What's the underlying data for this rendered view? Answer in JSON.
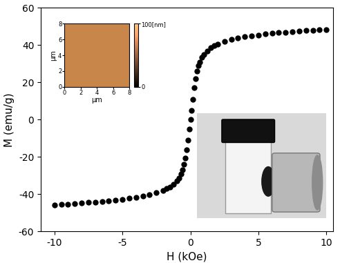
{
  "chart_data": [
    {
      "type": "scatter",
      "color": "#000000",
      "marker": "o",
      "xlabel": "H (kOe)",
      "ylabel": "M (emu/g)",
      "x": [
        -10,
        -9.5,
        -9,
        -8.5,
        -8,
        -7.5,
        -7,
        -6.5,
        -6,
        -5.5,
        -5,
        -4.5,
        -4,
        -3.5,
        -3,
        -2.5,
        -2,
        -1.75,
        -1.5,
        -1.25,
        -1,
        -0.85,
        -0.7,
        -0.6,
        -0.5,
        -0.4,
        -0.3,
        -0.2,
        -0.1,
        0,
        0.1,
        0.2,
        0.3,
        0.4,
        0.5,
        0.6,
        0.7,
        0.85,
        1,
        1.25,
        1.5,
        1.75,
        2,
        2.5,
        3,
        3.5,
        4,
        4.5,
        5,
        5.5,
        6,
        6.5,
        7,
        7.5,
        8,
        8.5,
        9,
        9.5,
        10
      ],
      "values": [
        -45.8,
        -45.5,
        -45.3,
        -45.0,
        -44.8,
        -44.5,
        -44.2,
        -43.9,
        -43.5,
        -43.1,
        -42.7,
        -42.2,
        -41.6,
        -41.0,
        -40.2,
        -39.3,
        -38.0,
        -37.1,
        -36.0,
        -34.7,
        -33.0,
        -31.3,
        -29.0,
        -26.8,
        -24.0,
        -20.5,
        -16.0,
        -11.0,
        -5.0,
        0.0,
        5.0,
        11.0,
        17.0,
        22.0,
        26.0,
        29.0,
        31.0,
        33.3,
        35.0,
        37.0,
        38.5,
        39.6,
        40.5,
        41.9,
        43.0,
        43.8,
        44.5,
        45.0,
        45.5,
        45.9,
        46.3,
        46.7,
        47.0,
        47.3,
        47.5,
        47.8,
        48.0,
        48.2,
        48.3
      ],
      "xlim": [
        -11,
        10.5
      ],
      "xticks": [
        -10,
        -5,
        0,
        5,
        10
      ],
      "ylim": [
        -60,
        60
      ],
      "yticks": [
        -60,
        -40,
        -20,
        0,
        20,
        40,
        60
      ]
    },
    {
      "type": "image",
      "color": "#c8864a",
      "xlabel": "μm",
      "ylabel": "μm",
      "xlim": [
        0,
        8
      ],
      "xticks": [
        0,
        2,
        4,
        6,
        8
      ],
      "ylim": [
        0,
        8
      ],
      "yticks": [
        0,
        2,
        4,
        6,
        8
      ],
      "zlim": [
        0,
        100
      ],
      "zticks": [
        0,
        {
          "value": 100,
          "label": "100[nm]"
        }
      ]
    }
  ]
}
